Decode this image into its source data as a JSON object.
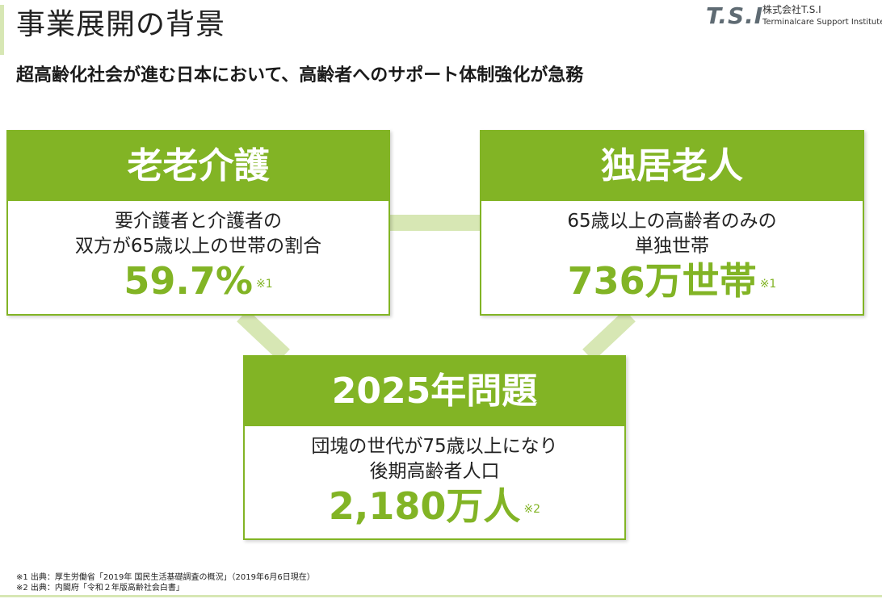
{
  "page": {
    "title": "事業展開の背景",
    "headline": "超高齢化社会が進む日本において、高齢者へのサポート体制強化が急務"
  },
  "logo": {
    "mark": "T.S.I",
    "company": "株式会社T.S.I",
    "subtitle": "Terminalcare Support Institute"
  },
  "colors": {
    "accent": "#82b425",
    "accent_light": "#d7e7b4"
  },
  "cards": [
    {
      "heading": "老老介護",
      "desc_line1": "要介護者と介護者の",
      "desc_line2": "双方が65歳以上の世帯の割合",
      "stat": "59.7%",
      "note": "※1"
    },
    {
      "heading": "独居老人",
      "desc_line1": "65歳以上の高齢者のみの",
      "desc_line2": "単独世帯",
      "stat": "736万世帯",
      "note": "※1"
    },
    {
      "heading": "2025年問題",
      "desc_line1": "団塊の世代が75歳以上になり",
      "desc_line2": "後期高齢者人口",
      "stat": "2,180万人",
      "note": "※2"
    }
  ],
  "footnotes": [
    "※1  出典：厚生労働省「2019年  国民生活基礎調査の概況」（2019年6月6日現在）",
    "※2  出典：内閣府「令和２年版高齢社会白書」"
  ]
}
